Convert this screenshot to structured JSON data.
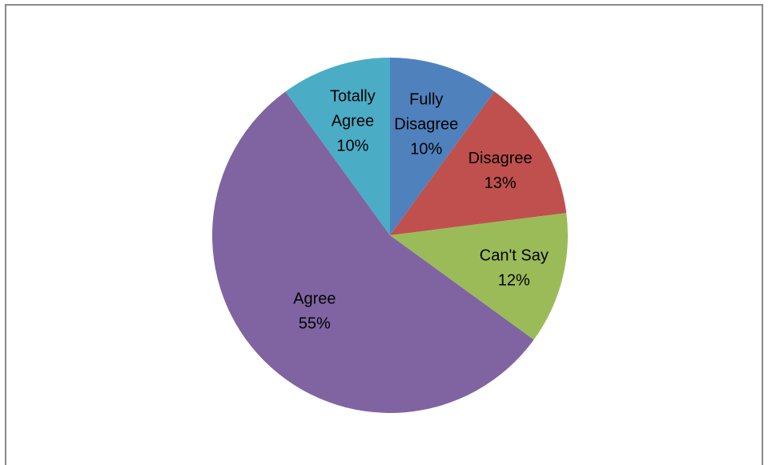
{
  "chart_data": {
    "type": "pie",
    "title": "",
    "slices": [
      {
        "label": "Fully Disagree",
        "label_lines": [
          "Fully",
          "Disagree"
        ],
        "value": 10,
        "value_label": "10%",
        "color": "#4f81bd"
      },
      {
        "label": "Disagree",
        "label_lines": [
          "Disagree"
        ],
        "value": 13,
        "value_label": "13%",
        "color": "#c0504d"
      },
      {
        "label": "Can't Say",
        "label_lines": [
          "Can't Say"
        ],
        "value": 12,
        "value_label": "12%",
        "color": "#9bbb59"
      },
      {
        "label": "Agree",
        "label_lines": [
          "Agree"
        ],
        "value": 55,
        "value_label": "55%",
        "color": "#8064a2"
      },
      {
        "label": "Totally Agree",
        "label_lines": [
          "Totally",
          "Agree"
        ],
        "value": 10,
        "value_label": "10%",
        "color": "#4bacc6"
      }
    ],
    "start_angle": "12 o'clock",
    "direction": "clockwise",
    "legend": "none",
    "labels": "inside"
  }
}
